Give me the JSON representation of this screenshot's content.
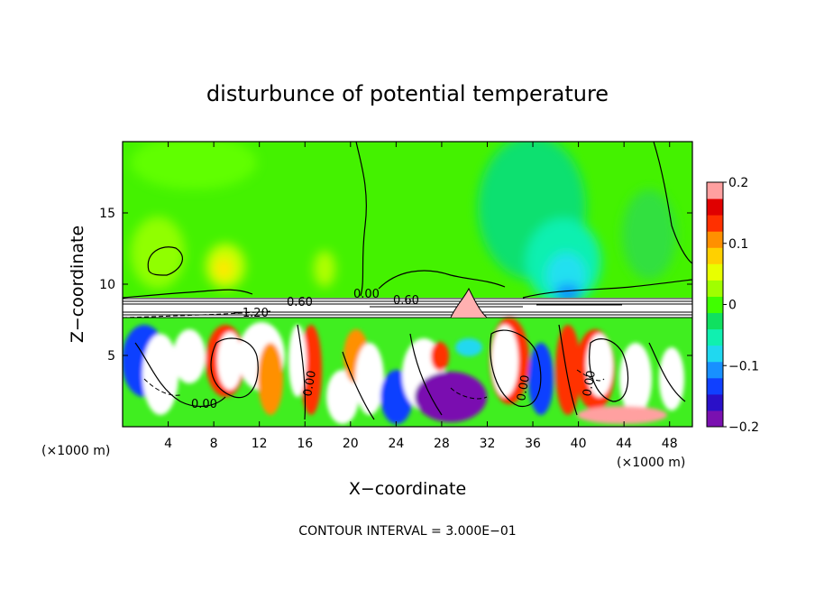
{
  "chart_data": {
    "type": "heatmap",
    "title": "disturbunce of potential temperature",
    "xlabel": "X−coordinate",
    "ylabel": "Z−coordinate",
    "x_unit": "(×1000 m)",
    "y_unit": "(×1000 m)",
    "xlim": [
      0,
      50
    ],
    "ylim": [
      0,
      20
    ],
    "x_ticks": [
      "4",
      "8",
      "12",
      "16",
      "20",
      "24",
      "28",
      "32",
      "36",
      "40",
      "44",
      "48"
    ],
    "y_ticks": [
      "5",
      "10",
      "15"
    ],
    "colorbar": {
      "range": [
        -0.2,
        0.2
      ],
      "ticks": [
        "0.2",
        "0.1",
        "0",
        "−0.1",
        "−0.2"
      ],
      "colors": [
        "#7a10b0",
        "#2a10c8",
        "#1040ff",
        "#1890ff",
        "#20d8f0",
        "#10f0b0",
        "#10e060",
        "#40ff00",
        "#a0ff00",
        "#e8ff00",
        "#ffd000",
        "#ff9000",
        "#ff3000",
        "#e00000",
        "#ffa0a0"
      ]
    },
    "contour_labels": [
      "−1.20",
      "0.60",
      "0.00",
      "0.60",
      "0.00",
      "0.00",
      "0.00",
      "0.00"
    ],
    "footer": "CONTOUR INTERVAL = 3.000E−01"
  }
}
